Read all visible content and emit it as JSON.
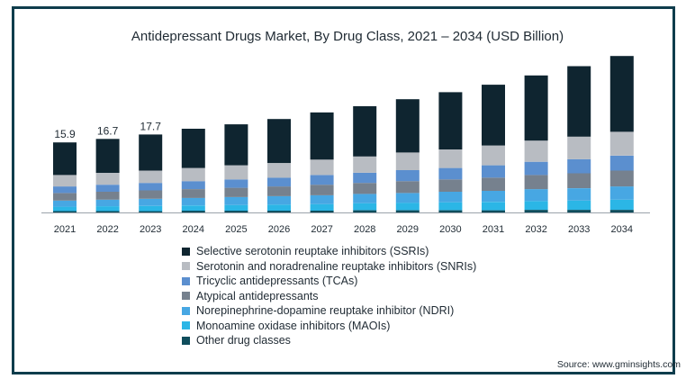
{
  "chart_data": {
    "type": "bar",
    "stacked": true,
    "title": "Antidepressant Drugs Market, By Drug Class, 2021 – 2034 (USD Billion)",
    "xlabel": "",
    "ylabel": "",
    "ylim": [
      0,
      38
    ],
    "grid": false,
    "legend_position": "bottom",
    "categories": [
      "2021",
      "2022",
      "2023",
      "2024",
      "2025",
      "2026",
      "2027",
      "2028",
      "2029",
      "2030",
      "2031",
      "2032",
      "2033",
      "2034"
    ],
    "series": [
      {
        "name": "Other drug classes",
        "color": "#0f4d5c",
        "values": [
          0.3,
          0.3,
          0.3,
          0.4,
          0.4,
          0.4,
          0.4,
          0.5,
          0.5,
          0.5,
          0.5,
          0.6,
          0.6,
          0.6
        ]
      },
      {
        "name": "Monoamine oxidase inhibitors (MAOIs)",
        "color": "#2bb6e6",
        "values": [
          1.0,
          1.1,
          1.2,
          1.2,
          1.3,
          1.4,
          1.5,
          1.6,
          1.7,
          1.8,
          1.9,
          2.0,
          2.1,
          2.3
        ]
      },
      {
        "name": "Norepinephrine-dopamine reuptake inhibitor (NDRI)",
        "color": "#47a7e3",
        "values": [
          1.4,
          1.5,
          1.6,
          1.7,
          1.8,
          1.9,
          2.0,
          2.1,
          2.2,
          2.4,
          2.5,
          2.7,
          2.8,
          3.0
        ]
      },
      {
        "name": "Atypical antidepressants",
        "color": "#76818e",
        "values": [
          1.7,
          1.8,
          1.9,
          2.0,
          2.1,
          2.2,
          2.4,
          2.5,
          2.7,
          2.8,
          3.0,
          3.2,
          3.4,
          3.6
        ]
      },
      {
        "name": "Tricyclic antidepressants (TCAs)",
        "color": "#5b8fcf",
        "values": [
          1.5,
          1.6,
          1.7,
          1.8,
          1.9,
          2.0,
          2.2,
          2.3,
          2.5,
          2.6,
          2.8,
          3.0,
          3.2,
          3.4
        ]
      },
      {
        "name": "Serotonin and noradrenaline reuptake inhibitors (SNRIs)",
        "color": "#b8bcc2",
        "values": [
          2.6,
          2.7,
          2.8,
          3.0,
          3.2,
          3.3,
          3.5,
          3.7,
          4.0,
          4.2,
          4.5,
          4.8,
          5.1,
          5.4
        ]
      },
      {
        "name": "Selective serotonin reuptake inhibitors (SSRIs)",
        "color": "#0f2530",
        "values": [
          7.4,
          7.7,
          8.2,
          8.9,
          9.3,
          10.0,
          10.7,
          11.4,
          12.1,
          13.0,
          13.8,
          14.8,
          16.0,
          17.2
        ]
      }
    ],
    "legend_order": [
      "Selective serotonin reuptake inhibitors (SSRIs)",
      "Serotonin and noradrenaline reuptake inhibitors (SNRIs)",
      "Tricyclic antidepressants (TCAs)",
      "Atypical antidepressants",
      "Norepinephrine-dopamine reuptake inhibitor (NDRI)",
      "Monoamine oxidase inhibitors (MAOIs)",
      "Other drug classes"
    ],
    "data_labels": [
      {
        "category": "2021",
        "text": "15.9"
      },
      {
        "category": "2022",
        "text": "16.7"
      },
      {
        "category": "2023",
        "text": "17.7"
      }
    ],
    "source": "Source: www.gminsights.com"
  }
}
